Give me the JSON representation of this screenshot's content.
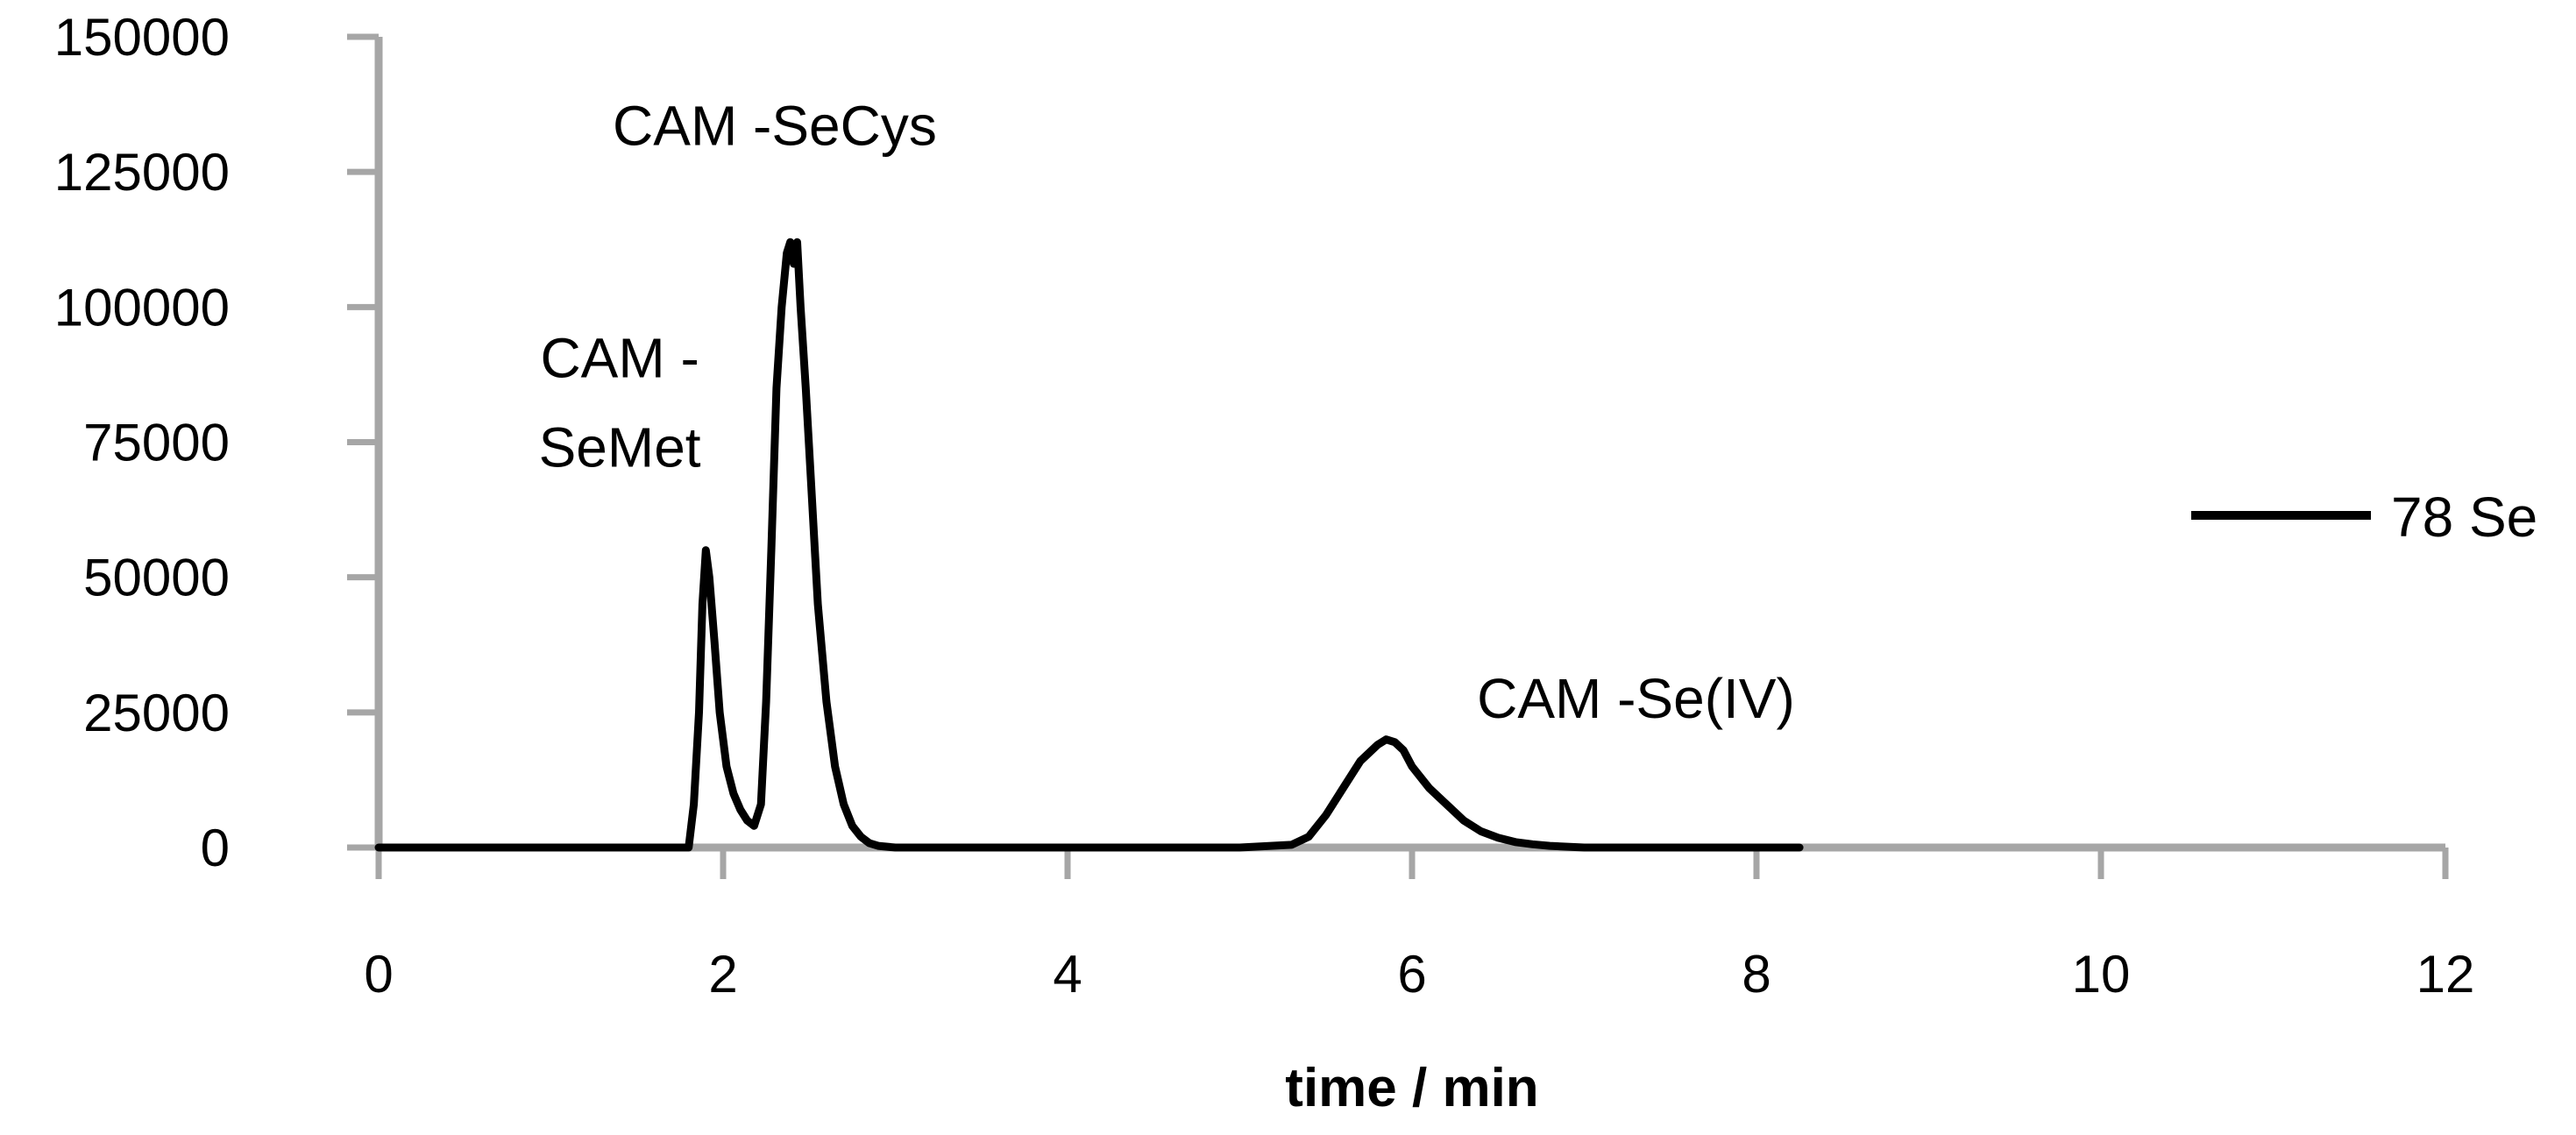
{
  "chart_data": {
    "type": "line",
    "title": "",
    "xlabel": "time / min",
    "ylabel": "",
    "xlim": [
      0,
      12
    ],
    "ylim": [
      0,
      150000
    ],
    "x_ticks": [
      0,
      2,
      4,
      6,
      8,
      10,
      12
    ],
    "y_ticks": [
      0,
      25000,
      50000,
      75000,
      100000,
      125000,
      150000
    ],
    "x_tick_labels": [
      "0",
      "2",
      "4",
      "6",
      "8",
      "10",
      "12"
    ],
    "y_tick_labels": [
      "0",
      "25000",
      "50000",
      "75000",
      "100000",
      "125000",
      "150000"
    ],
    "grid": false,
    "legend_position": "right",
    "axis_color": "#a6a6a6",
    "series_color": "#000000",
    "series": [
      {
        "name": "78 Se",
        "x": [
          0,
          1.8,
          1.83,
          1.86,
          1.88,
          1.9,
          1.92,
          1.95,
          1.98,
          2.02,
          2.06,
          2.1,
          2.14,
          2.18,
          2.22,
          2.25,
          2.28,
          2.31,
          2.34,
          2.37,
          2.39,
          2.41,
          2.43,
          2.45,
          2.48,
          2.51,
          2.55,
          2.6,
          2.65,
          2.7,
          2.75,
          2.8,
          2.85,
          2.9,
          3.0,
          3.5,
          4.0,
          4.5,
          5.0,
          5.3,
          5.4,
          5.5,
          5.6,
          5.7,
          5.8,
          5.85,
          5.9,
          5.95,
          6.0,
          6.1,
          6.2,
          6.3,
          6.4,
          6.5,
          6.6,
          6.7,
          6.8,
          7.0,
          7.5,
          8.0,
          8.25
        ],
        "y": [
          0,
          0,
          8000,
          25000,
          45000,
          55000,
          50000,
          38000,
          25000,
          15000,
          10000,
          7000,
          5000,
          4000,
          8000,
          27000,
          55000,
          85000,
          100000,
          110000,
          112000,
          108000,
          112000,
          100000,
          85000,
          68000,
          45000,
          27000,
          15000,
          8000,
          4000,
          2000,
          800,
          300,
          0,
          0,
          0,
          0,
          0,
          500,
          2000,
          6000,
          11000,
          16000,
          19000,
          20000,
          19500,
          18000,
          15000,
          11000,
          8000,
          5000,
          3000,
          1800,
          1000,
          600,
          300,
          0,
          0,
          0,
          0
        ]
      }
    ],
    "annotations": [
      {
        "lines": [
          "CAM  -SeCys"
        ],
        "x": 2.3,
        "y": 130000
      },
      {
        "lines": [
          "CAM  -",
          "SeMet"
        ],
        "x": 1.4,
        "y": 87000
      },
      {
        "lines": [
          "CAM  -Se(IV)"
        ],
        "x": 7.3,
        "y": 24000
      }
    ]
  }
}
